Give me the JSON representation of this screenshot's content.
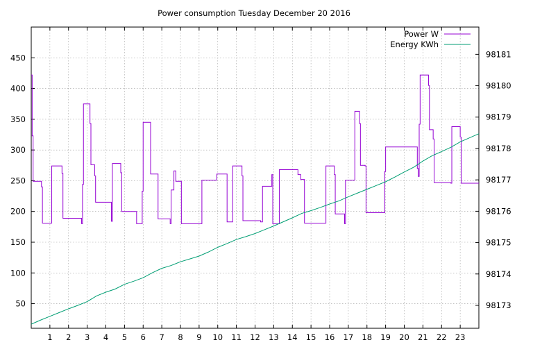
{
  "chart_data": {
    "type": "line",
    "title": "Power consumption Tuesday December 20 2016",
    "xlabel": "",
    "ylabel": "",
    "y2label": "",
    "grid": true,
    "legend_position": "top-right",
    "xlim": [
      0,
      24
    ],
    "ylim": [
      10,
      500
    ],
    "y2lim": [
      98172.27,
      98181.87
    ],
    "x_ticks": [
      1,
      2,
      3,
      4,
      5,
      6,
      7,
      8,
      9,
      10,
      11,
      12,
      13,
      14,
      15,
      16,
      17,
      18,
      19,
      20,
      21,
      22,
      23
    ],
    "y_ticks": [
      50,
      100,
      150,
      200,
      250,
      300,
      350,
      400,
      450
    ],
    "y2_ticks": [
      98173,
      98174,
      98175,
      98176,
      98177,
      98178,
      98179,
      98180,
      98181
    ],
    "colors": {
      "power": "#9400d3",
      "energy": "#009e73"
    },
    "series": [
      {
        "name": "Power W",
        "axis": "y",
        "x": [
          0,
          0.05,
          0.05,
          0.1,
          0.1,
          0.15,
          0.15,
          0.55,
          0.55,
          0.6,
          0.6,
          1.1,
          1.1,
          1.2,
          1.2,
          1.65,
          1.65,
          1.7,
          1.7,
          2.7,
          2.7,
          2.75,
          2.75,
          2.8,
          2.8,
          3.15,
          3.15,
          3.2,
          3.2,
          3.4,
          3.4,
          3.45,
          3.45,
          4.3,
          4.3,
          4.35,
          4.35,
          4.8,
          4.8,
          4.85,
          4.85,
          5.65,
          5.65,
          5.95,
          5.95,
          6.0,
          6.0,
          6.4,
          6.4,
          6.8,
          6.8,
          6.85,
          6.85,
          7.45,
          7.45,
          7.5,
          7.5,
          7.65,
          7.65,
          7.75,
          7.75,
          8.05,
          8.05,
          8.1,
          8.1,
          9.15,
          9.15,
          9.95,
          9.95,
          10.5,
          10.5,
          10.8,
          10.8,
          11.3,
          11.3,
          11.35,
          11.35,
          12.3,
          12.3,
          12.4,
          12.4,
          12.9,
          12.9,
          12.95,
          12.95,
          13.0,
          13.0,
          13.3,
          13.3,
          14.3,
          14.3,
          14.45,
          14.45,
          14.65,
          14.65,
          15.75,
          15.75,
          15.8,
          15.8,
          16.25,
          16.25,
          16.3,
          16.3,
          16.8,
          16.8,
          16.85,
          16.85,
          17.35,
          17.35,
          17.6,
          17.6,
          17.65,
          17.65,
          17.9,
          17.9,
          17.95,
          17.95,
          18.95,
          18.95,
          19.0,
          19.0,
          20.7,
          20.7,
          20.75,
          20.75,
          20.8,
          20.8,
          20.85,
          20.85,
          21.3,
          21.3,
          21.35,
          21.35,
          21.55,
          21.55,
          21.6,
          21.6,
          22.5,
          22.5,
          22.55,
          22.55,
          23.0,
          23.0,
          23.05,
          23.05,
          24.0
        ],
        "values": [
          422,
          422,
          323,
          323,
          249,
          249,
          249,
          249,
          240,
          240,
          181,
          181,
          274,
          274,
          274,
          274,
          262,
          262,
          189,
          189,
          180,
          180,
          244,
          244,
          375,
          375,
          343,
          343,
          276,
          276,
          258,
          258,
          215,
          215,
          184,
          184,
          278,
          278,
          263,
          263,
          200,
          200,
          180,
          180,
          233,
          233,
          345,
          345,
          261,
          261,
          188,
          188,
          188,
          188,
          180,
          180,
          235,
          235,
          266,
          266,
          249,
          249,
          180,
          180,
          180,
          180,
          251,
          251,
          261,
          261,
          183,
          183,
          274,
          274,
          258,
          258,
          185,
          185,
          183,
          183,
          241,
          241,
          260,
          260,
          180,
          180,
          180,
          180,
          268,
          268,
          260,
          260,
          252,
          252,
          181,
          181,
          181,
          181,
          274,
          274,
          260,
          260,
          196,
          196,
          180,
          180,
          251,
          251,
          363,
          363,
          343,
          343,
          275,
          275,
          274,
          274,
          198,
          198,
          265,
          265,
          305,
          305,
          270,
          270,
          257,
          257,
          342,
          342,
          422,
          422,
          405,
          405,
          333,
          333,
          318,
          318,
          247,
          247,
          246,
          246,
          338,
          338,
          321,
          321,
          246,
          246
        ]
      },
      {
        "name": "Energy KWh",
        "axis": "y2",
        "x": [
          0,
          0.5,
          1.0,
          1.5,
          2.0,
          2.5,
          3.0,
          3.5,
          4.0,
          4.5,
          5.0,
          5.5,
          6.0,
          6.5,
          7.0,
          7.5,
          8.0,
          8.5,
          9.0,
          9.5,
          10.0,
          10.5,
          11.0,
          11.5,
          12.0,
          12.5,
          13.0,
          13.5,
          14.0,
          14.5,
          15.0,
          15.5,
          16.0,
          16.5,
          17.0,
          17.5,
          18.0,
          18.5,
          19.0,
          19.5,
          20.0,
          20.5,
          21.0,
          21.5,
          22.0,
          22.5,
          23.0,
          23.5,
          24.0
        ],
        "values": [
          98172.4,
          98172.53,
          98172.65,
          98172.77,
          98172.89,
          98173.0,
          98173.12,
          98173.3,
          98173.42,
          98173.52,
          98173.67,
          98173.77,
          98173.88,
          98174.04,
          98174.18,
          98174.27,
          98174.39,
          98174.48,
          98174.57,
          98174.7,
          98174.85,
          98174.97,
          98175.1,
          98175.19,
          98175.29,
          98175.41,
          98175.53,
          98175.66,
          98175.79,
          98175.93,
          98176.02,
          98176.12,
          98176.23,
          98176.33,
          98176.46,
          98176.58,
          98176.7,
          98176.82,
          98176.94,
          98177.09,
          98177.25,
          98177.4,
          98177.6,
          98177.77,
          98177.9,
          98178.04,
          98178.21,
          98178.34,
          98178.47
        ]
      }
    ]
  }
}
